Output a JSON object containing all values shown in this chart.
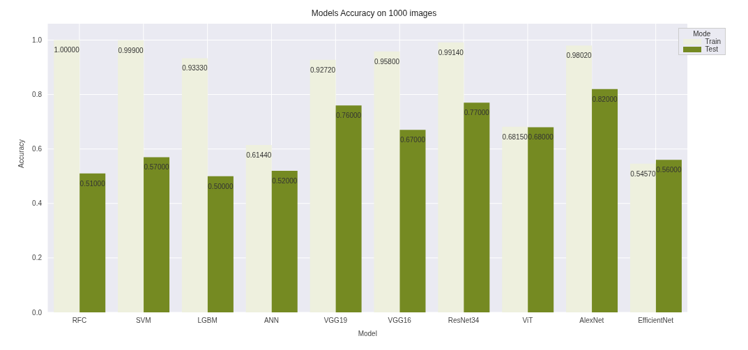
{
  "chart_data": {
    "type": "bar",
    "title": "Models Accuracy on 1000 images",
    "xlabel": "Model",
    "ylabel": "Accuracy",
    "legend_title": "Mode",
    "categories": [
      "RFC",
      "SVM",
      "LGBM",
      "ANN",
      "VGG19",
      "VGG16",
      "ResNet34",
      "ViT",
      "AlexNet",
      "EfficientNet"
    ],
    "series": [
      {
        "name": "Train",
        "color": "#eef0de",
        "values": [
          1.0,
          0.999,
          0.9333,
          0.6144,
          0.9272,
          0.958,
          0.9914,
          0.6815,
          0.9802,
          0.5457
        ],
        "value_labels": [
          "1.00000",
          "0.99900",
          "0.93330",
          "0.61440",
          "0.92720",
          "0.95800",
          "0.99140",
          "0.68150",
          "0.98020",
          "0.54570"
        ]
      },
      {
        "name": "Test",
        "color": "#758a22",
        "values": [
          0.51,
          0.57,
          0.5,
          0.52,
          0.76,
          0.67,
          0.77,
          0.68,
          0.82,
          0.56
        ],
        "value_labels": [
          "0.51000",
          "0.57000",
          "0.50000",
          "0.52000",
          "0.76000",
          "0.67000",
          "0.77000",
          "0.68000",
          "0.82000",
          "0.56000"
        ]
      }
    ],
    "ylim": [
      0,
      1.06
    ],
    "yticks": [
      {
        "value": 0,
        "label": "0.0"
      },
      0.2,
      0.4,
      0.6,
      0.8,
      {
        "value": 1,
        "label": "1.0"
      }
    ],
    "grid": true,
    "legend": "top right"
  }
}
